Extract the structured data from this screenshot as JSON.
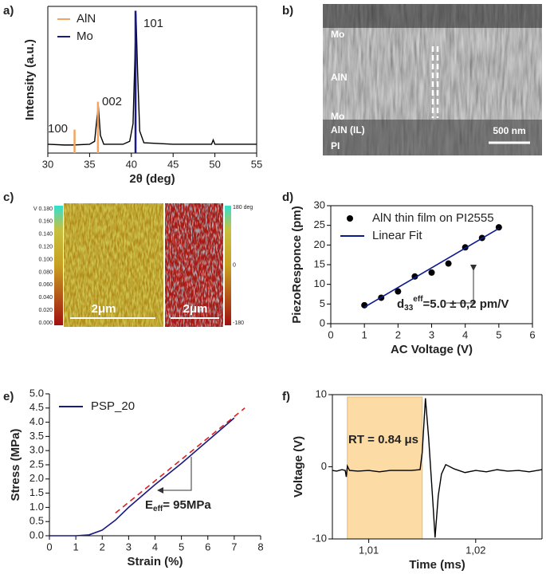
{
  "chart_data": [
    {
      "type": "line",
      "panel_label": "a)",
      "xlabel": "2θ (deg)",
      "ylabel": "Intensity (a.u.)",
      "xlim": [
        30,
        55
      ],
      "xticks": [
        30,
        35,
        40,
        45,
        50,
        55
      ],
      "ylim": [
        0,
        100
      ],
      "frame": true,
      "legend": "upper left",
      "x": [
        30,
        32,
        33,
        35,
        35.6,
        35.9,
        36.05,
        36.3,
        36.7,
        39,
        39.8,
        40.2,
        40.4,
        40.55,
        40.75,
        41,
        41.5,
        45,
        49.6,
        49.8,
        50,
        55
      ],
      "values": [
        6,
        5.5,
        5.5,
        6,
        8,
        25,
        32,
        12,
        6,
        6,
        8,
        20,
        60,
        95,
        55,
        15,
        7,
        6,
        6,
        9,
        6,
        6
      ],
      "color": "#000000",
      "series": [
        {
          "name": "AlN",
          "color": "#f4a460",
          "style": "stick",
          "x": [
            33.2,
            36.0
          ],
          "values": [
            16,
            35
          ]
        },
        {
          "name": "Mo",
          "color": "#1a1a80",
          "style": "stick",
          "x": [
            40.5
          ],
          "values": [
            97
          ]
        }
      ],
      "peak_labels": [
        "100",
        "002",
        "101"
      ]
    },
    {
      "type": "scatter",
      "panel_label": "d)",
      "xlabel": "AC Voltage (V)",
      "ylabel": "PiezoResponce (pm)",
      "xlim": [
        0,
        6
      ],
      "xticks": [
        0,
        1,
        2,
        3,
        4,
        5,
        6
      ],
      "ylim": [
        0,
        30
      ],
      "yticks": [
        0,
        5,
        10,
        15,
        20,
        25,
        30
      ],
      "frame": true,
      "legend": "upper left",
      "series": [
        {
          "name": "AlN thin film on PI2555",
          "color": "#000000",
          "style": "points",
          "x": [
            1,
            1.5,
            2,
            2.5,
            3,
            3.5,
            4,
            4.5,
            5
          ],
          "values": [
            4.7,
            6.6,
            8.2,
            12,
            13,
            15.3,
            19.4,
            21.8,
            24.5
          ]
        },
        {
          "name": "Linear Fit",
          "color": "#0a1a8c",
          "style": "line",
          "x": [
            1,
            5
          ],
          "values": [
            4.2,
            24.2
          ]
        }
      ],
      "annotation": {
        "base": "d",
        "sub": "33",
        "sup": "eff",
        "text": "=5.0 ± 0,2 pm/V"
      }
    },
    {
      "type": "line",
      "panel_label": "e)",
      "xlabel": "Strain (%)",
      "ylabel": "Stress (MPa)",
      "xlim": [
        0,
        8
      ],
      "xticks": [
        0,
        1,
        2,
        3,
        4,
        5,
        6,
        7,
        8
      ],
      "ylim": [
        0,
        5
      ],
      "yticks": [
        {
          "value": 0,
          "label": "0.0"
        },
        0.5,
        {
          "value": 1,
          "label": "1.0"
        },
        1.5,
        {
          "value": 2,
          "label": "2.0"
        },
        2.5,
        {
          "value": 3,
          "label": "3.0"
        },
        3.5,
        {
          "value": 4,
          "label": "4.0"
        },
        4.5,
        {
          "value": 5,
          "label": "5.0"
        }
      ],
      "frame": false,
      "legend": "upper left",
      "series": [
        {
          "name": "PSP_20",
          "color": "#1a1a80",
          "style": "line",
          "x": [
            0,
            1,
            1.5,
            2,
            2.5,
            3,
            3.5,
            4,
            5,
            6,
            7
          ],
          "values": [
            0,
            0,
            0.03,
            0.2,
            0.55,
            1.0,
            1.4,
            1.8,
            2.55,
            3.35,
            4.15
          ]
        },
        {
          "color": "#e02020",
          "style": "dash",
          "x": [
            2.5,
            7.4
          ],
          "values": [
            0.8,
            4.5
          ]
        }
      ],
      "annotation": {
        "base": "E",
        "sub": "eff",
        "text": "= 95MPa"
      }
    },
    {
      "type": "line",
      "panel_label": "f)",
      "xlabel": "Time (ms)",
      "ylabel": "Voltage (V)",
      "xlim": [
        1.0066,
        1.0262
      ],
      "xticks": [
        {
          "value": 1.01,
          "label": "1,01"
        },
        {
          "value": 1.02,
          "label": "1,02"
        }
      ],
      "ylim": [
        -10,
        10
      ],
      "yticks": [
        -10,
        0,
        10
      ],
      "frame": true,
      "highlight": {
        "xlim": [
          1.008,
          1.015
        ],
        "color": "#fcdba5"
      },
      "x": [
        1.0066,
        1.007,
        1.0075,
        1.0078,
        1.0079,
        1.008,
        1.0082,
        1.009,
        1.01,
        1.011,
        1.012,
        1.013,
        1.014,
        1.0148,
        1.015,
        1.0153,
        1.0156,
        1.016,
        1.0162,
        1.0165,
        1.0168,
        1.0172,
        1.018,
        1.019,
        1.02,
        1.021,
        1.022,
        1.023,
        1.024,
        1.025,
        1.0262
      ],
      "values": [
        -0.5,
        -0.6,
        -0.4,
        -0.5,
        -1.4,
        0.1,
        -0.5,
        -0.6,
        -0.5,
        -0.7,
        -0.5,
        -0.5,
        -0.5,
        -0.4,
        2,
        9.5,
        4,
        -5,
        -9.8,
        -4,
        -1,
        0.3,
        -0.3,
        -0.8,
        -0.5,
        -0.7,
        -0.4,
        -0.6,
        -0.5,
        -0.7,
        -0.4
      ],
      "color": "#000000",
      "annotation": {
        "text": "RT = 0.84 μs"
      }
    }
  ],
  "sem_image": {
    "panel_label": "b)",
    "labels": [
      "Mo",
      "AlN",
      "Mo",
      "AlN (IL)",
      "PI"
    ],
    "scale_bar": "500 nm"
  },
  "afm_image": {
    "panel_label": "c)",
    "left_colorbar_labels": [
      "V 0.180",
      "0.160",
      "0.140",
      "0.120",
      "0.100",
      "0.080",
      "0.060",
      "0.040",
      "0.020",
      "0.000"
    ],
    "right_colorbar_labels": [
      "180 deg",
      "0",
      "-180"
    ],
    "scale_bars": [
      "2μm",
      "2μm"
    ]
  }
}
